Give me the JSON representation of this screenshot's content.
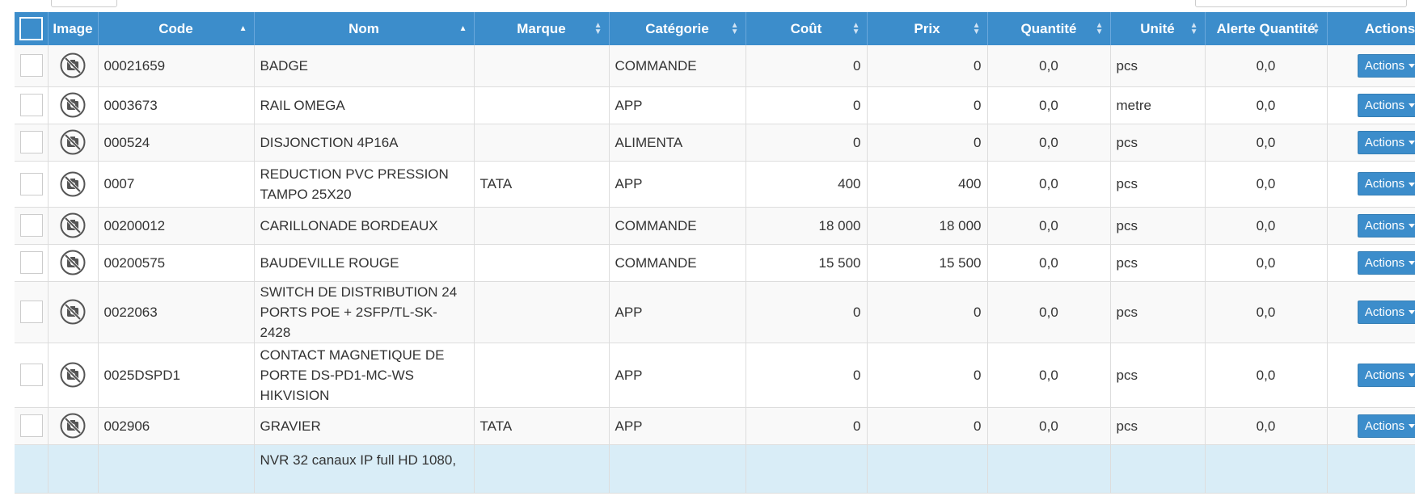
{
  "columns": [
    {
      "label": "",
      "sort": "none"
    },
    {
      "label": "Image",
      "sort": "none"
    },
    {
      "label": "Code",
      "sort": "asc"
    },
    {
      "label": "Nom",
      "sort": "asc"
    },
    {
      "label": "Marque",
      "sort": "both"
    },
    {
      "label": "Catégorie",
      "sort": "both"
    },
    {
      "label": "Coût",
      "sort": "both"
    },
    {
      "label": "Prix",
      "sort": "both"
    },
    {
      "label": "Quantité",
      "sort": "both"
    },
    {
      "label": "Unité",
      "sort": "both"
    },
    {
      "label": "Alerte Quantité",
      "sort": "both"
    },
    {
      "label": "Actions",
      "sort": "none"
    }
  ],
  "action_label": "Actions",
  "image_icon": "no-camera-icon",
  "accent_color": "#3c8dcb",
  "rows": [
    {
      "code": "00021659",
      "nom": "BADGE",
      "marque": "",
      "categorie": "COMMANDE",
      "cout": "0",
      "prix": "0",
      "quantite": "0,0",
      "unite": "pcs",
      "alerte": "0,0"
    },
    {
      "code": "0003673",
      "nom": "RAIL OMEGA",
      "marque": "",
      "categorie": "APP",
      "cout": "0",
      "prix": "0",
      "quantite": "0,0",
      "unite": "metre",
      "alerte": "0,0"
    },
    {
      "code": "000524",
      "nom": "DISJONCTION 4P16A",
      "marque": "",
      "categorie": "ALIMENTA",
      "cout": "0",
      "prix": "0",
      "quantite": "0,0",
      "unite": "pcs",
      "alerte": "0,0"
    },
    {
      "code": "0007",
      "nom": "REDUCTION PVC PRESSION TAMPO 25X20",
      "marque": "TATA",
      "categorie": "APP",
      "cout": "400",
      "prix": "400",
      "quantite": "0,0",
      "unite": "pcs",
      "alerte": "0,0"
    },
    {
      "code": "00200012",
      "nom": "CARILLONADE BORDEAUX",
      "marque": "",
      "categorie": "COMMANDE",
      "cout": "18 000",
      "prix": "18 000",
      "quantite": "0,0",
      "unite": "pcs",
      "alerte": "0,0"
    },
    {
      "code": "00200575",
      "nom": "BAUDEVILLE ROUGE",
      "marque": "",
      "categorie": "COMMANDE",
      "cout": "15 500",
      "prix": "15 500",
      "quantite": "0,0",
      "unite": "pcs",
      "alerte": "0,0"
    },
    {
      "code": "0022063",
      "nom": "SWITCH DE DISTRIBUTION 24 PORTS POE + 2SFP/TL-SK-2428",
      "marque": "",
      "categorie": "APP",
      "cout": "0",
      "prix": "0",
      "quantite": "0,0",
      "unite": "pcs",
      "alerte": "0,0"
    },
    {
      "code": "0025DSPD1",
      "nom": "CONTACT MAGNETIQUE DE PORTE DS-PD1-MC-WS HIKVISION",
      "marque": "",
      "categorie": "APP",
      "cout": "0",
      "prix": "0",
      "quantite": "0,0",
      "unite": "pcs",
      "alerte": "0,0"
    },
    {
      "code": "002906",
      "nom": "GRAVIER",
      "marque": "TATA",
      "categorie": "APP",
      "cout": "0",
      "prix": "0",
      "quantite": "0,0",
      "unite": "pcs",
      "alerte": "0,0"
    },
    {
      "code": "",
      "nom": "NVR 32 canaux IP full HD 1080,",
      "marque": "",
      "categorie": "",
      "cout": "",
      "prix": "",
      "quantite": "",
      "unite": "",
      "alerte": "",
      "partial": true
    }
  ]
}
